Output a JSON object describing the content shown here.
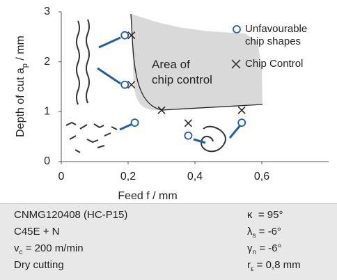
{
  "chart_data": {
    "type": "scatter",
    "xlabel": "Feed f / mm",
    "ylabel": [
      "Depth of cut a",
      "p",
      " / mm"
    ],
    "annotation": [
      "Area of",
      "chip control"
    ],
    "xlim": [
      0,
      0.8
    ],
    "ylim": [
      0,
      3
    ],
    "xticks": [
      0,
      {
        "value": 0.2,
        "label": "0,2"
      },
      {
        "value": 0.4,
        "label": "0,4"
      },
      {
        "value": 0.6,
        "label": "0,6"
      }
    ],
    "yticks": [
      0,
      1,
      2,
      3
    ],
    "series": [
      {
        "name": "Unfavourable chip shapes",
        "marker": "circle",
        "color": "#1f5fa8",
        "x": [
          0.19,
          0.19,
          0.22,
          0.38,
          0.54
        ],
        "values": [
          2.53,
          1.54,
          0.78,
          0.52,
          0.78
        ]
      },
      {
        "name": "Chip Control",
        "marker": "cross",
        "color": "#222222",
        "x": [
          0.21,
          0.21,
          0.3,
          0.38,
          0.54
        ],
        "values": [
          2.53,
          1.54,
          1.03,
          0.77,
          1.03
        ]
      }
    ]
  },
  "info": {
    "left": [
      "CNMG120408 (HC-P15)",
      "C45E + N",
      {
        "main": "v",
        "sub": "c",
        "rest": " = 200 m/min"
      },
      "Dry cutting"
    ],
    "right": [
      {
        "main": "κ",
        "sub": "",
        "rest": "  = 95°"
      },
      {
        "main": "λ",
        "sub": "s",
        "rest": " = -6°"
      },
      {
        "main": "γ",
        "sub": "n",
        "rest": " = -6°"
      },
      {
        "main": "r",
        "sub": "ε",
        "rest": " = 0,8 mm"
      }
    ]
  }
}
